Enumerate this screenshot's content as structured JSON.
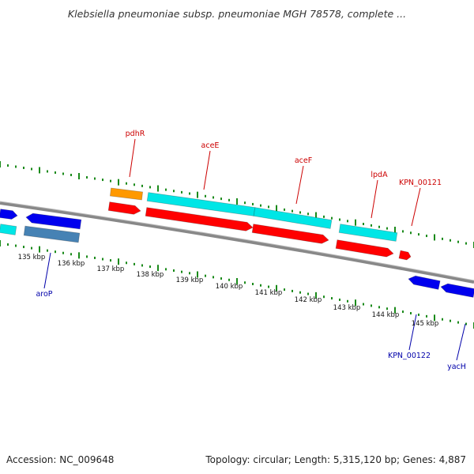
{
  "title": "Klebsiella pneumoniae subsp. pneumoniae MGH 78578, complete ...",
  "footer": {
    "accession": "Accession: NC_009648",
    "summary": "Topology: circular; Length: 5,315,120 bp; Genes: 4,887"
  },
  "colors": {
    "backbone": "#888888",
    "tick_ruler": "#1a8a1a",
    "cds": "#ff0000",
    "gene_cyan": "#00e6e6",
    "gene_orange": "#ff9900",
    "gene_blue": "#0000ee",
    "gene_steel": "#4682b4",
    "label_top": "#cc0000",
    "label_bottom": "#0000aa"
  },
  "scale_labels": [
    "135 kbp",
    "136 kbp",
    "137 kbp",
    "138 kbp",
    "139 kbp",
    "140 kbp",
    "141 kbp",
    "142 kbp",
    "143 kbp",
    "144 kbp",
    "145 kbp"
  ],
  "top_labels": [
    "pdhR",
    "aceE",
    "aceF",
    "lpdA",
    "KPN_00121"
  ],
  "bottom_labels": [
    "aroP",
    "KPN_00122",
    "yacH"
  ]
}
